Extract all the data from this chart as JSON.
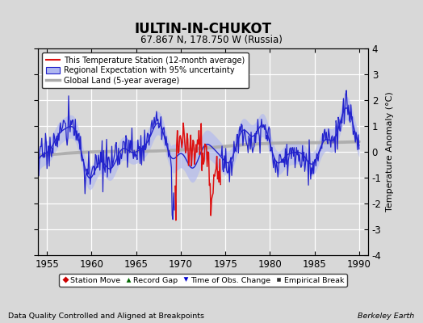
{
  "title": "IULTIN-IN-CHUKOT",
  "subtitle": "67.867 N, 178.750 W (Russia)",
  "ylabel": "Temperature Anomaly (°C)",
  "xlabel_left": "Data Quality Controlled and Aligned at Breakpoints",
  "xlabel_right": "Berkeley Earth",
  "ylim": [
    -4,
    4
  ],
  "xlim": [
    1954,
    1991
  ],
  "xticks": [
    1955,
    1960,
    1965,
    1970,
    1975,
    1980,
    1985,
    1990
  ],
  "yticks": [
    -4,
    -3,
    -2,
    -1,
    0,
    1,
    2,
    3,
    4
  ],
  "bg_color": "#d8d8d8",
  "plot_bg_color": "#d8d8d8",
  "grid_color": "white",
  "legend_items": [
    "This Temperature Station (12-month average)",
    "Regional Expectation with 95% uncertainty",
    "Global Land (5-year average)"
  ],
  "marker_legend": [
    {
      "label": "Station Move",
      "color": "#cc0000",
      "marker": "D"
    },
    {
      "label": "Record Gap",
      "color": "#006600",
      "marker": "^"
    },
    {
      "label": "Time of Obs. Change",
      "color": "#0000cc",
      "marker": "v"
    },
    {
      "label": "Empirical Break",
      "color": "#333333",
      "marker": "s"
    }
  ],
  "record_gaps": [
    1969.3,
    1973.0
  ],
  "red_start": 1969.3,
  "red_end": 1974.5
}
